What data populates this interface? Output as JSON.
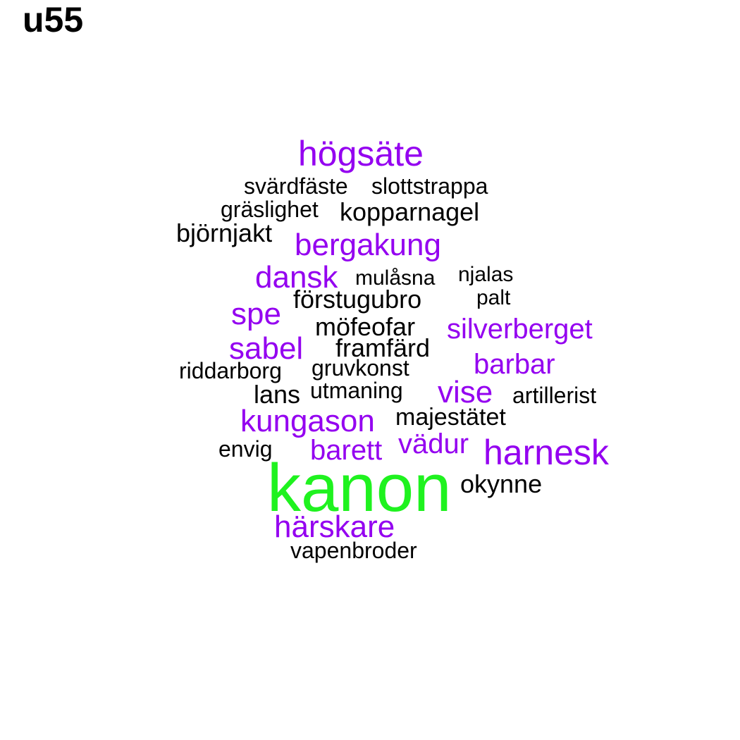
{
  "title": "u55",
  "colors": {
    "black": "#000000",
    "purple": "#9400f0",
    "green": "#1ff21f"
  },
  "words": [
    {
      "text": "högsäte",
      "color": "purple"
    },
    {
      "text": "svärdfäste",
      "color": "black"
    },
    {
      "text": "slottstrappa",
      "color": "black"
    },
    {
      "text": "gräslighet",
      "color": "black"
    },
    {
      "text": "kopparnagel",
      "color": "black"
    },
    {
      "text": "björnjakt",
      "color": "black"
    },
    {
      "text": "bergakung",
      "color": "purple"
    },
    {
      "text": "dansk",
      "color": "purple"
    },
    {
      "text": "mulåsna",
      "color": "black"
    },
    {
      "text": "njalas",
      "color": "black"
    },
    {
      "text": "förstugubro",
      "color": "black"
    },
    {
      "text": "palt",
      "color": "black"
    },
    {
      "text": "spe",
      "color": "purple"
    },
    {
      "text": "möfeofar",
      "color": "black"
    },
    {
      "text": "silverberget",
      "color": "purple"
    },
    {
      "text": "sabel",
      "color": "purple"
    },
    {
      "text": "framfärd",
      "color": "black"
    },
    {
      "text": "barbar",
      "color": "purple"
    },
    {
      "text": "riddarborg",
      "color": "black"
    },
    {
      "text": "gruvkonst",
      "color": "black"
    },
    {
      "text": "lans",
      "color": "black"
    },
    {
      "text": "utmaning",
      "color": "black"
    },
    {
      "text": "vise",
      "color": "purple"
    },
    {
      "text": "artillerist",
      "color": "black"
    },
    {
      "text": "kungason",
      "color": "purple"
    },
    {
      "text": "majestätet",
      "color": "black"
    },
    {
      "text": "envig",
      "color": "black"
    },
    {
      "text": "barett",
      "color": "purple"
    },
    {
      "text": "vädur",
      "color": "purple"
    },
    {
      "text": "harnesk",
      "color": "purple"
    },
    {
      "text": "kanon",
      "color": "green"
    },
    {
      "text": "okynne",
      "color": "black"
    },
    {
      "text": "härskare",
      "color": "purple"
    },
    {
      "text": "vapenbroder",
      "color": "black"
    }
  ]
}
